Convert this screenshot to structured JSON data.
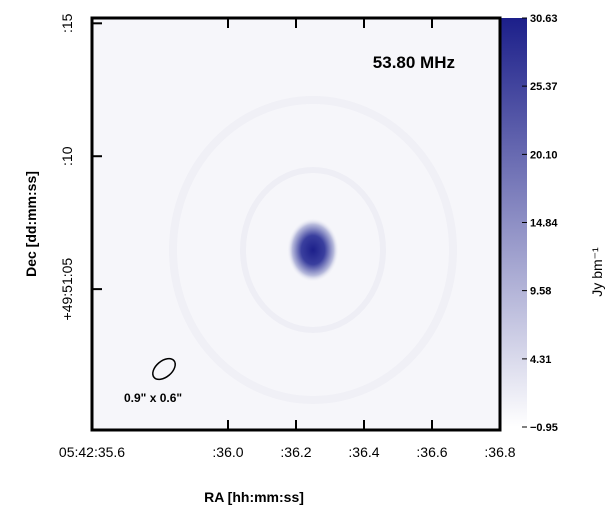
{
  "chart_data": {
    "type": "image",
    "annotation": "53.80 MHz",
    "beam_label": "0.9\" x 0.6\"",
    "xlabel": "RA [hh:mm:ss]",
    "ylabel": "Dec [dd:mm:ss]",
    "colorbar_label": "Jy bm⁻¹",
    "xlim": [
      35.6,
      36.8
    ],
    "xticks": [
      {
        "value": 35.6,
        "label": "05:42:35.6"
      },
      {
        "value": 36.0,
        "label": ":36.0"
      },
      {
        "value": 36.2,
        "label": ":36.2"
      },
      {
        "value": 36.4,
        "label": ":36.4"
      },
      {
        "value": 36.6,
        "label": ":36.6"
      },
      {
        "value": 36.8,
        "label": ":36.8"
      }
    ],
    "ylim": [
      -0.3,
      15.2
    ],
    "yticks": [
      {
        "value": 5,
        "label": "+49:51:05"
      },
      {
        "value": 10,
        "label": ":10"
      },
      {
        "value": 15,
        "label": ":15"
      }
    ],
    "clim": [
      -0.95,
      30.63
    ],
    "cticks": [
      {
        "value": -0.95,
        "label": "−0.95"
      },
      4.31,
      9.58,
      14.84,
      {
        "value": 20.1,
        "label": "20.10"
      },
      25.37,
      30.63
    ],
    "colormap": [
      "#ffffff",
      "#1c1f8a"
    ]
  }
}
